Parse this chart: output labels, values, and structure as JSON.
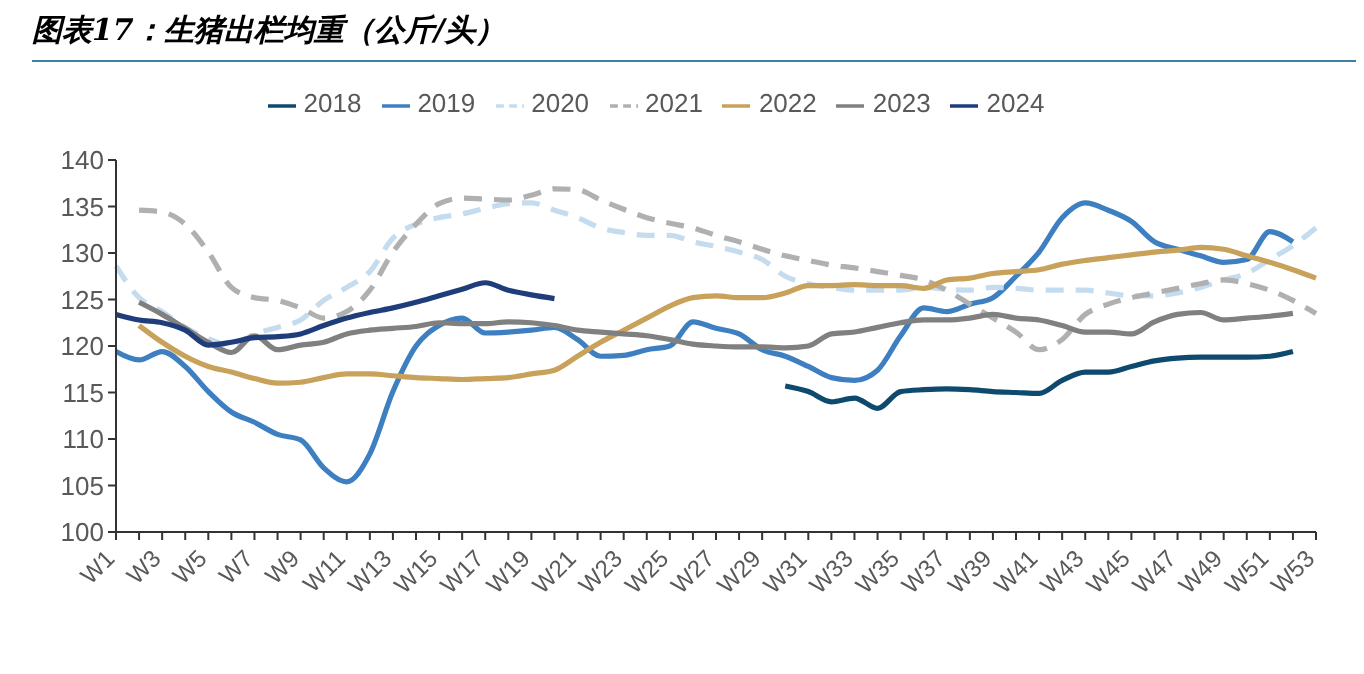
{
  "chart_data": {
    "type": "line",
    "title": "图表17：生猪出栏均重（公斤/头）",
    "categories": [
      "W1",
      null,
      "W3",
      null,
      "W5",
      null,
      "W7",
      null,
      "W9",
      null,
      "W11",
      null,
      "W13",
      null,
      "W15",
      null,
      "W17",
      null,
      "W19",
      null,
      "W21",
      null,
      "W23",
      null,
      "W25",
      null,
      "W27",
      null,
      "W29",
      null,
      "W31",
      null,
      "W33",
      null,
      "W35",
      null,
      "W37",
      null,
      "W39",
      null,
      "W41",
      null,
      "W43",
      null,
      "W45",
      null,
      "W47",
      null,
      "W49",
      null,
      "W51",
      null,
      "W53"
    ],
    "ylim": [
      100,
      140
    ],
    "yticks": [
      100,
      105,
      110,
      115,
      120,
      125,
      130,
      135,
      140
    ],
    "grid": false,
    "legend": "top",
    "marker": "none",
    "series": [
      {
        "name": "2018",
        "color": "#0d4a6e",
        "line_style": "solid",
        "values": [
          null,
          null,
          null,
          null,
          null,
          null,
          null,
          null,
          null,
          null,
          null,
          null,
          null,
          null,
          null,
          null,
          null,
          null,
          null,
          null,
          null,
          null,
          null,
          null,
          null,
          null,
          null,
          null,
          null,
          115.7,
          115.1,
          114,
          114.4,
          113.3,
          115.1,
          115.3,
          115.4,
          115.3,
          115.1,
          115,
          114.9,
          116.3,
          117.2,
          117.2,
          117.8,
          118.4,
          118.7,
          118.8,
          118.8,
          118.8,
          118.9,
          119.4,
          null
        ]
      },
      {
        "name": "2019",
        "color": "#3d7fc1",
        "line_style": "solid",
        "values": [
          119.4,
          118.5,
          119.4,
          117.8,
          115.1,
          112.9,
          111.8,
          110.5,
          109.9,
          106.9,
          105.4,
          108.4,
          115.1,
          120,
          122.2,
          123,
          121.4,
          121.5,
          121.7,
          122,
          120.7,
          118.9,
          119,
          119.6,
          120,
          122.6,
          121.9,
          121.3,
          119.6,
          118.9,
          117.8,
          116.6,
          116.3,
          117.4,
          121.1,
          124.1,
          123.7,
          124.5,
          125.2,
          127.5,
          130.1,
          133.8,
          135.4,
          134.6,
          133.4,
          131.2,
          130.4,
          129.7,
          129,
          129.3,
          132.3,
          131.2,
          null
        ]
      },
      {
        "name": "2020",
        "color": "#c5dcef",
        "line_style": "dashed",
        "values": [
          128.6,
          125.2,
          123.7,
          122,
          120.8,
          120,
          121.3,
          122,
          122.8,
          124.9,
          126.3,
          128,
          131.6,
          133.1,
          133.8,
          134.2,
          134.8,
          135.3,
          135.4,
          134.6,
          133.8,
          132.7,
          132.2,
          131.9,
          131.9,
          131.2,
          130.7,
          130.1,
          129.3,
          127.5,
          126.7,
          126.3,
          126,
          126,
          126,
          126.3,
          126.1,
          126,
          126.3,
          126.2,
          126,
          126,
          126,
          125.7,
          125.4,
          125.4,
          125.7,
          126.3,
          127.1,
          127.8,
          129.3,
          130.8,
          132.7
        ]
      },
      {
        "name": "2021",
        "color": "#b0b0b0",
        "line_style": "dashed",
        "values": [
          null,
          134.6,
          134.4,
          133.1,
          130.1,
          126.3,
          125.2,
          124.9,
          124.1,
          123,
          123.7,
          126,
          130.1,
          133.1,
          135.3,
          135.9,
          135.8,
          135.7,
          136.2,
          136.9,
          136.8,
          135.7,
          134.7,
          133.8,
          133.2,
          132.7,
          131.9,
          131.2,
          130.4,
          129.7,
          129.2,
          128.7,
          128.4,
          128,
          127.6,
          127.1,
          126,
          124.5,
          123,
          121.5,
          119.6,
          120.7,
          123.4,
          124.5,
          125.2,
          125.7,
          126.2,
          126.7,
          127.1,
          126.7,
          126,
          124.9,
          123.5
        ]
      },
      {
        "name": "2022",
        "color": "#c8a15a",
        "line_style": "solid",
        "values": [
          null,
          122.2,
          120.4,
          118.9,
          117.8,
          117.2,
          116.5,
          116,
          116.1,
          116.6,
          117,
          117,
          116.8,
          116.6,
          116.5,
          116.4,
          116.5,
          116.6,
          117,
          117.4,
          118.9,
          120.4,
          121.7,
          123,
          124.3,
          125.2,
          125.4,
          125.2,
          125.2,
          125.7,
          126.5,
          126.5,
          126.6,
          126.5,
          126.5,
          126.2,
          127.1,
          127.3,
          127.8,
          128,
          128.2,
          128.8,
          129.2,
          129.5,
          129.8,
          130.1,
          130.3,
          130.6,
          130.4,
          129.7,
          129,
          128.2,
          127.3
        ]
      },
      {
        "name": "2023",
        "color": "#808080",
        "line_style": "solid",
        "values": [
          null,
          124.7,
          123.4,
          121.9,
          120.4,
          119.3,
          121.1,
          119.6,
          120.1,
          120.4,
          121.3,
          121.7,
          121.9,
          122.1,
          122.5,
          122.4,
          122.4,
          122.6,
          122.5,
          122.2,
          121.7,
          121.5,
          121.3,
          121.1,
          120.7,
          120.2,
          120,
          119.9,
          119.9,
          119.8,
          120,
          121.3,
          121.5,
          122,
          122.5,
          122.8,
          122.8,
          123,
          123.4,
          123,
          122.8,
          122.2,
          121.5,
          121.5,
          121.3,
          122.6,
          123.4,
          123.6,
          122.8,
          123,
          123.2,
          123.5,
          null
        ]
      },
      {
        "name": "2024",
        "color": "#1f3d7a",
        "line_style": "solid",
        "values": [
          123.4,
          122.8,
          122.5,
          121.7,
          120.1,
          120.4,
          120.9,
          121,
          121.3,
          122.2,
          123,
          123.6,
          124.1,
          124.7,
          125.4,
          126.1,
          126.8,
          126,
          125.5,
          125.1,
          null,
          null,
          null,
          null,
          null,
          null,
          null,
          null,
          null,
          null,
          null,
          null,
          null,
          null,
          null,
          null,
          null,
          null,
          null,
          null,
          null,
          null,
          null,
          null,
          null,
          null,
          null,
          null,
          null,
          null,
          null,
          null,
          null
        ]
      }
    ]
  }
}
